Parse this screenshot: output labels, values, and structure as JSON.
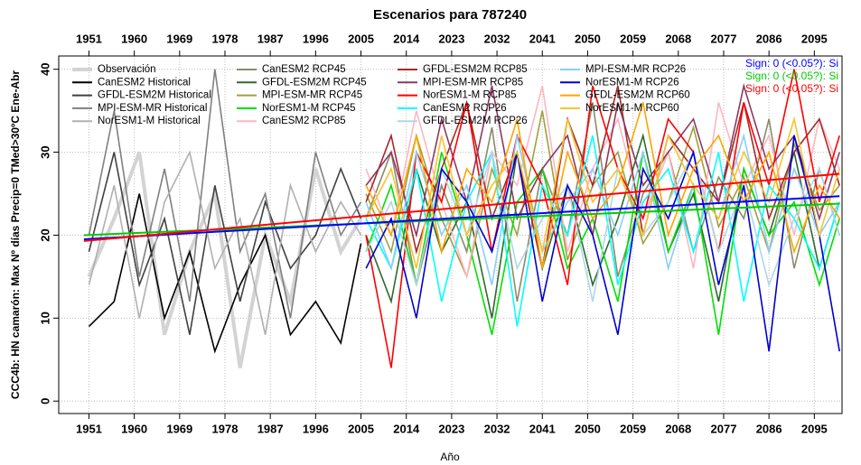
{
  "chart_data": {
    "type": "line",
    "title": "Escenarios  para 787240",
    "x_label": "Año",
    "y_label": "CCC4b: HN camarón: Max Nº días Precip=0 TMed>30ºC Ene-Abr",
    "xlim": [
      1945,
      2100.5
    ],
    "ylim": [
      -1.5,
      41.6
    ],
    "xticks": [
      1951,
      1960,
      1969,
      1978,
      1987,
      1996,
      2005,
      2014,
      2023,
      2032,
      2041,
      2050,
      2059,
      2068,
      2077,
      2086,
      2095
    ],
    "yticks": [
      0,
      10,
      20,
      30,
      40
    ],
    "grid": true,
    "series": [
      {
        "name": "Observación",
        "color": "#d3d3d3",
        "x": [
          1951,
          1956,
          1961,
          1966,
          1971,
          1976,
          1981,
          1986,
          1991,
          1996,
          2001,
          2005
        ],
        "values": [
          15,
          22,
          30,
          8,
          18,
          25,
          4,
          20,
          12,
          28,
          18,
          22
        ]
      },
      {
        "name": "CanESM2 Historical",
        "color": "#000000",
        "x": [
          1951,
          1956,
          1961,
          1966,
          1971,
          1976,
          1981,
          1986,
          1991,
          1996,
          2001,
          2005
        ],
        "values": [
          9,
          12,
          25,
          10,
          18,
          6,
          14,
          20,
          8,
          12,
          7,
          19
        ]
      },
      {
        "name": "GFDL-ESM2M Historical",
        "color": "#404040",
        "x": [
          1951,
          1956,
          1961,
          1966,
          1971,
          1976,
          1981,
          1986,
          1991,
          1996,
          2001,
          2005
        ],
        "values": [
          18,
          30,
          14,
          22,
          8,
          26,
          12,
          24,
          16,
          20,
          28,
          22
        ]
      },
      {
        "name": "MPI-ESM-MR Historical",
        "color": "#808080",
        "x": [
          1951,
          1956,
          1961,
          1966,
          1971,
          1976,
          1981,
          1986,
          1991,
          1996,
          2001,
          2005
        ],
        "values": [
          20,
          35,
          15,
          28,
          12,
          40,
          18,
          25,
          10,
          30,
          20,
          24
        ]
      },
      {
        "name": "NorESM1-M Historical",
        "color": "#b0b0b0",
        "x": [
          1951,
          1956,
          1961,
          1966,
          1971,
          1976,
          1981,
          1986,
          1991,
          1996,
          2001,
          2005
        ],
        "values": [
          14,
          26,
          10,
          24,
          30,
          16,
          22,
          8,
          26,
          18,
          24,
          20
        ]
      },
      {
        "name": "CanESM2 RCP45",
        "color": "#8b8b6a",
        "x": [
          2006,
          2011,
          2016,
          2021,
          2026,
          2031,
          2036,
          2041,
          2046,
          2051,
          2056,
          2061,
          2066,
          2071,
          2076,
          2081,
          2086,
          2091,
          2096,
          2100
        ],
        "values": [
          22,
          30,
          14,
          26,
          18,
          33,
          12,
          28,
          20,
          36,
          15,
          25,
          30,
          18,
          27,
          22,
          34,
          16,
          28,
          20
        ]
      },
      {
        "name": "GFDL-ESM2M RCP45",
        "color": "#2e6b2e",
        "x": [
          2006,
          2011,
          2016,
          2021,
          2026,
          2031,
          2036,
          2041,
          2046,
          2051,
          2056,
          2061,
          2066,
          2071,
          2076,
          2081,
          2086,
          2091,
          2096,
          2100
        ],
        "values": [
          20,
          12,
          28,
          18,
          24,
          10,
          30,
          16,
          26,
          14,
          22,
          32,
          18,
          25,
          12,
          28,
          20,
          30,
          16,
          24
        ]
      },
      {
        "name": "MPI-ESM-MR RCP45",
        "color": "#a0a040",
        "x": [
          2006,
          2011,
          2016,
          2021,
          2026,
          2031,
          2036,
          2041,
          2046,
          2051,
          2056,
          2061,
          2066,
          2071,
          2076,
          2081,
          2086,
          2091,
          2096,
          2100
        ],
        "values": [
          25,
          18,
          32,
          22,
          15,
          28,
          20,
          35,
          17,
          26,
          30,
          19,
          24,
          33,
          21,
          27,
          18,
          31,
          23,
          26
        ]
      },
      {
        "name": "NorESM1-M RCP45",
        "color": "#00e000",
        "x": [
          2006,
          2011,
          2016,
          2021,
          2026,
          2031,
          2036,
          2041,
          2046,
          2051,
          2056,
          2061,
          2066,
          2071,
          2076,
          2081,
          2086,
          2091,
          2096,
          2100
        ],
        "values": [
          18,
          26,
          14,
          30,
          20,
          8,
          24,
          28,
          16,
          22,
          12,
          30,
          18,
          26,
          8,
          28,
          20,
          24,
          14,
          22
        ]
      },
      {
        "name": "CanESM2 RCP85",
        "color": "#ffb6c1",
        "x": [
          2006,
          2011,
          2016,
          2021,
          2026,
          2031,
          2036,
          2041,
          2046,
          2051,
          2056,
          2061,
          2066,
          2071,
          2076,
          2081,
          2086,
          2091,
          2096,
          2100
        ],
        "values": [
          28,
          20,
          35,
          24,
          15,
          30,
          26,
          38,
          18,
          28,
          34,
          22,
          30,
          16,
          36,
          26,
          32,
          20,
          34,
          28
        ]
      },
      {
        "name": "GFDL-ESM2M RCP85",
        "color": "#a52a2a",
        "x": [
          2006,
          2011,
          2016,
          2021,
          2026,
          2031,
          2036,
          2041,
          2046,
          2051,
          2056,
          2061,
          2066,
          2071,
          2076,
          2081,
          2086,
          2091,
          2096,
          2100
        ],
        "values": [
          24,
          32,
          18,
          28,
          36,
          22,
          30,
          16,
          34,
          26,
          38,
          20,
          32,
          28,
          24,
          36,
          22,
          30,
          34,
          26
        ]
      },
      {
        "name": "MPI-ESM-MR RCP85",
        "color": "#8b3a62",
        "x": [
          2006,
          2011,
          2016,
          2021,
          2026,
          2031,
          2036,
          2041,
          2046,
          2051,
          2056,
          2061,
          2066,
          2071,
          2076,
          2081,
          2086,
          2091,
          2096,
          2100
        ],
        "values": [
          26,
          30,
          20,
          34,
          24,
          38,
          22,
          28,
          32,
          20,
          36,
          26,
          30,
          34,
          24,
          38,
          28,
          32,
          22,
          30
        ]
      },
      {
        "name": "NorESM1-M RCP85",
        "color": "#ff0000",
        "x": [
          2006,
          2011,
          2016,
          2021,
          2026,
          2031,
          2036,
          2041,
          2046,
          2051,
          2056,
          2061,
          2066,
          2071,
          2076,
          2081,
          2086,
          2091,
          2096,
          2100
        ],
        "values": [
          20,
          4,
          30,
          24,
          36,
          18,
          32,
          26,
          14,
          38,
          28,
          22,
          34,
          30,
          18,
          36,
          26,
          40,
          24,
          32
        ]
      },
      {
        "name": "CanESM2 RCP26",
        "color": "#00ffff",
        "x": [
          2006,
          2011,
          2016,
          2021,
          2026,
          2031,
          2036,
          2041,
          2046,
          2051,
          2056,
          2061,
          2066,
          2071,
          2076,
          2081,
          2086,
          2091,
          2096,
          2100
        ],
        "values": [
          22,
          16,
          28,
          12,
          24,
          30,
          9,
          26,
          20,
          32,
          14,
          24,
          28,
          18,
          30,
          12,
          26,
          22,
          16,
          24
        ]
      },
      {
        "name": "GFDL-ESM2M RCP26",
        "color": "#add8e6",
        "x": [
          2006,
          2011,
          2016,
          2021,
          2026,
          2031,
          2036,
          2041,
          2046,
          2051,
          2056,
          2061,
          2066,
          2071,
          2076,
          2081,
          2086,
          2091,
          2096,
          2100
        ],
        "values": [
          18,
          24,
          14,
          28,
          20,
          30,
          16,
          22,
          26,
          12,
          28,
          20,
          24,
          30,
          18,
          26,
          14,
          22,
          28,
          20
        ]
      },
      {
        "name": "MPI-ESM-MR RCP26",
        "color": "#87cefa",
        "x": [
          2006,
          2011,
          2016,
          2021,
          2026,
          2031,
          2036,
          2041,
          2046,
          2051,
          2056,
          2061,
          2066,
          2071,
          2076,
          2081,
          2086,
          2091,
          2096,
          2100
        ],
        "values": [
          24,
          16,
          30,
          20,
          26,
          14,
          32,
          18,
          24,
          28,
          20,
          30,
          16,
          26,
          22,
          32,
          18,
          28,
          20,
          24
        ]
      },
      {
        "name": "NorESM1-M RCP26",
        "color": "#0000cd",
        "x": [
          2006,
          2011,
          2016,
          2021,
          2026,
          2031,
          2036,
          2041,
          2046,
          2051,
          2056,
          2061,
          2066,
          2071,
          2076,
          2081,
          2086,
          2091,
          2096,
          2100
        ],
        "values": [
          16,
          22,
          10,
          28,
          24,
          18,
          30,
          12,
          26,
          20,
          8,
          28,
          22,
          30,
          14,
          26,
          6,
          32,
          20,
          6
        ]
      },
      {
        "name": "GFDL-ESM2M RCP60",
        "color": "#ffa500",
        "x": [
          2006,
          2011,
          2016,
          2021,
          2026,
          2031,
          2036,
          2041,
          2046,
          2051,
          2056,
          2061,
          2066,
          2071,
          2076,
          2081,
          2086,
          2091,
          2096,
          2100
        ],
        "values": [
          26,
          20,
          32,
          18,
          28,
          24,
          34,
          16,
          30,
          22,
          26,
          36,
          20,
          28,
          32,
          24,
          30,
          18,
          26,
          22
        ]
      },
      {
        "name": "NorESM1-M RCP60",
        "color": "#f4c430",
        "x": [
          2006,
          2011,
          2016,
          2021,
          2026,
          2031,
          2036,
          2041,
          2046,
          2051,
          2056,
          2061,
          2066,
          2071,
          2076,
          2081,
          2086,
          2091,
          2096,
          2100
        ],
        "values": [
          22,
          28,
          16,
          32,
          20,
          26,
          30,
          18,
          34,
          24,
          28,
          20,
          32,
          26,
          22,
          30,
          24,
          34,
          20,
          28
        ]
      }
    ],
    "trend_lines": [
      {
        "color": "#00cc00",
        "x": [
          1950,
          2100
        ],
        "values": [
          20,
          23.8
        ]
      },
      {
        "color": "#0000ff",
        "x": [
          1950,
          2100
        ],
        "values": [
          19.5,
          24.7
        ]
      },
      {
        "color": "#ff0000",
        "x": [
          1950,
          2100
        ],
        "values": [
          19.3,
          27.4
        ]
      }
    ],
    "annotations": [
      {
        "text": "Sign: 0  (<0.05?): Si",
        "color": "#0000ff"
      },
      {
        "text": "Sign: 0  (<0.05?): Si",
        "color": "#00cc00"
      },
      {
        "text": "Sign: 0  (<0.05?): Si",
        "color": "#ff0000"
      }
    ]
  }
}
